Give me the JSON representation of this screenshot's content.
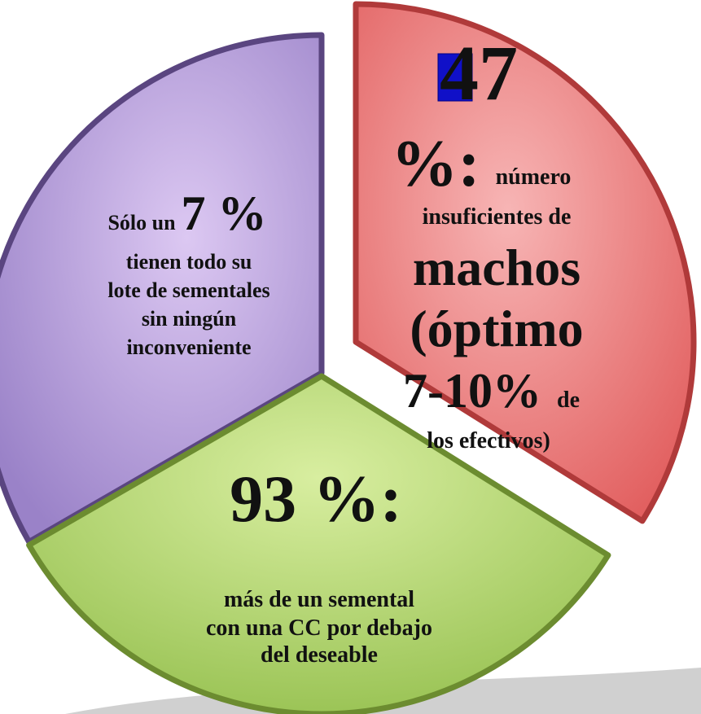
{
  "segments": {
    "red": {
      "big": "47",
      "percent": "%:",
      "word": "número",
      "lines": [
        "insuficientes de",
        "machos",
        "(óptimo"
      ],
      "range": "7-10%",
      "de": "de",
      "last": "los efectivos)"
    },
    "green": {
      "big": "93 %:",
      "lines": [
        "más de un semental",
        "con una CC por debajo",
        "del deseable"
      ]
    },
    "purple": {
      "intro": "Sólo un",
      "big": "7 %",
      "lines": [
        "tienen todo su",
        "lote de sementales",
        "sin ningún",
        "inconveniente"
      ]
    }
  }
}
